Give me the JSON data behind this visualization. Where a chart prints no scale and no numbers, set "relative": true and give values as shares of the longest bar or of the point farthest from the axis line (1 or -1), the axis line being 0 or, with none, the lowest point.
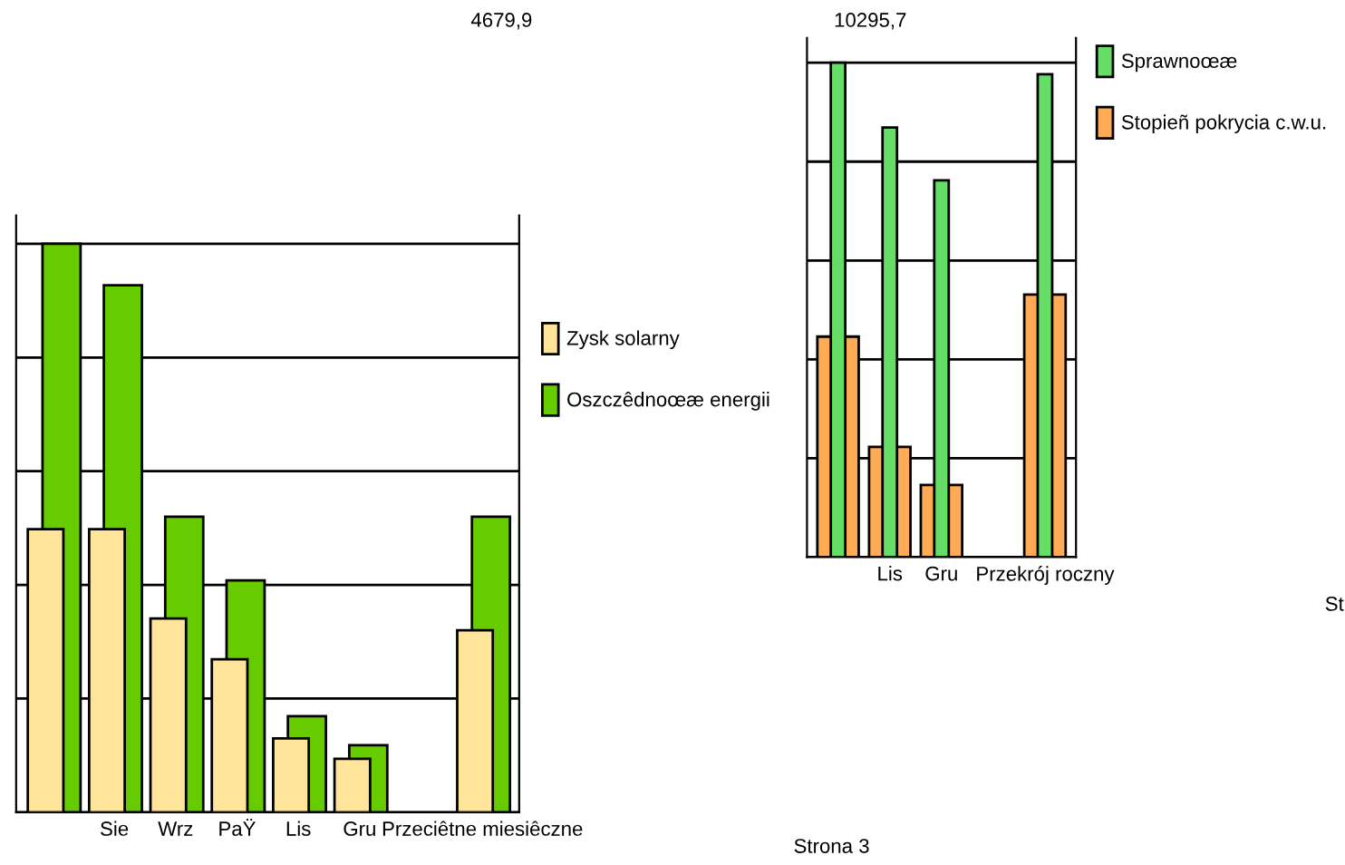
{
  "chart_data": [
    {
      "type": "bar",
      "relative": true,
      "categories": [
        null,
        "Sie",
        "Wrz",
        "PaŸ",
        "Lis",
        "Gru",
        null,
        "Przeciêtne miesiêczne"
      ],
      "series": [
        {
          "name": "Zysk solarny",
          "color": "#ffe599",
          "values": [
            0.498,
            0.498,
            0.341,
            0.269,
            0.13,
            0.094,
            null,
            0.32
          ]
        },
        {
          "name": "Oszczêdnoœæ energii",
          "color": "#66cc00",
          "values": [
            1,
            0.927,
            0.52,
            0.408,
            0.169,
            0.118,
            null,
            0.52
          ]
        }
      ],
      "grid": "y",
      "legend": "right",
      "annotations": [
        "4679,9",
        "10295,7",
        "Strona 3"
      ]
    },
    {
      "type": "bar",
      "relative": true,
      "categories": [
        null,
        "Lis",
        "Gru",
        null,
        "Przekrój roczny"
      ],
      "series": [
        {
          "name": "Sprawnoœæ",
          "color": "#66dd66",
          "values": [
            1,
            0.869,
            0.762,
            null,
            0.977
          ]
        },
        {
          "name": "Stopieñ pokrycia c.w.u.",
          "color": "#ffaa55",
          "values": [
            0.446,
            0.223,
            0.146,
            null,
            0.531
          ]
        }
      ],
      "grid": "y",
      "legend": "right",
      "annotations": [
        "St"
      ]
    }
  ]
}
